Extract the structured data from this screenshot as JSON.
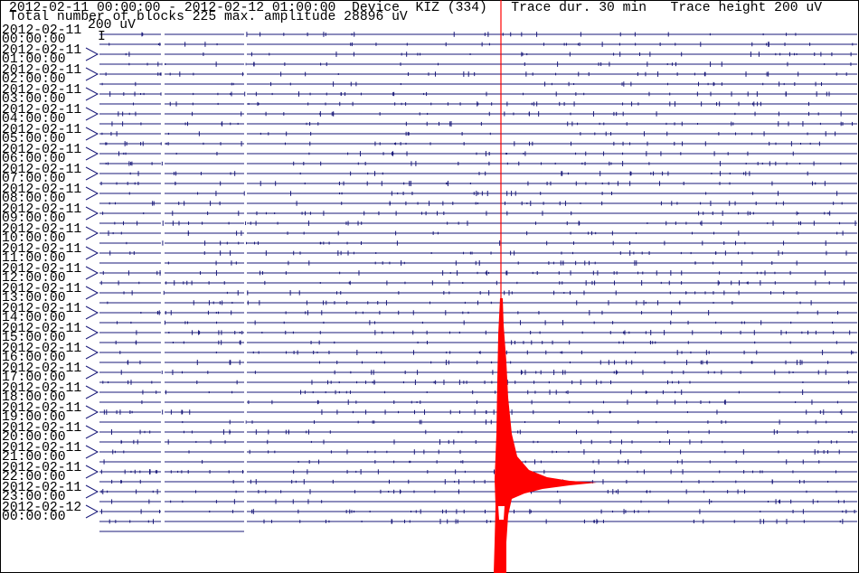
{
  "header": {
    "line1": "2012-02-11 00:00:00 - 2012-02-12 01:00:00  Device  KIZ (334)   Trace dur. 30 min   Trace height 200 uV",
    "line2": "Total number of blocks 225 max. amplitude 28896 uV",
    "scale": "200 uV",
    "scale_mark": "I"
  },
  "labels": [
    {
      "date": "2012-02-11",
      "time": "00:00:00"
    },
    {
      "date": "2012-02-11",
      "time": "01:00:00"
    },
    {
      "date": "2012-02-11",
      "time": "02:00:00"
    },
    {
      "date": "2012-02-11",
      "time": "03:00:00"
    },
    {
      "date": "2012-02-11",
      "time": "04:00:00"
    },
    {
      "date": "2012-02-11",
      "time": "05:00:00"
    },
    {
      "date": "2012-02-11",
      "time": "06:00:00"
    },
    {
      "date": "2012-02-11",
      "time": "07:00:00"
    },
    {
      "date": "2012-02-11",
      "time": "08:00:00"
    },
    {
      "date": "2012-02-11",
      "time": "09:00:00"
    },
    {
      "date": "2012-02-11",
      "time": "10:00:00"
    },
    {
      "date": "2012-02-11",
      "time": "11:00:00"
    },
    {
      "date": "2012-02-11",
      "time": "12:00:00"
    },
    {
      "date": "2012-02-11",
      "time": "13:00:00"
    },
    {
      "date": "2012-02-11",
      "time": "14:00:00"
    },
    {
      "date": "2012-02-11",
      "time": "15:00:00"
    },
    {
      "date": "2012-02-11",
      "time": "16:00:00"
    },
    {
      "date": "2012-02-11",
      "time": "17:00:00"
    },
    {
      "date": "2012-02-11",
      "time": "18:00:00"
    },
    {
      "date": "2012-02-11",
      "time": "19:00:00"
    },
    {
      "date": "2012-02-11",
      "time": "20:00:00"
    },
    {
      "date": "2012-02-11",
      "time": "21:00:00"
    },
    {
      "date": "2012-02-11",
      "time": "22:00:00"
    },
    {
      "date": "2012-02-11",
      "time": "23:00:00"
    },
    {
      "date": "2012-02-12",
      "time": "00:00:00"
    }
  ]
}
